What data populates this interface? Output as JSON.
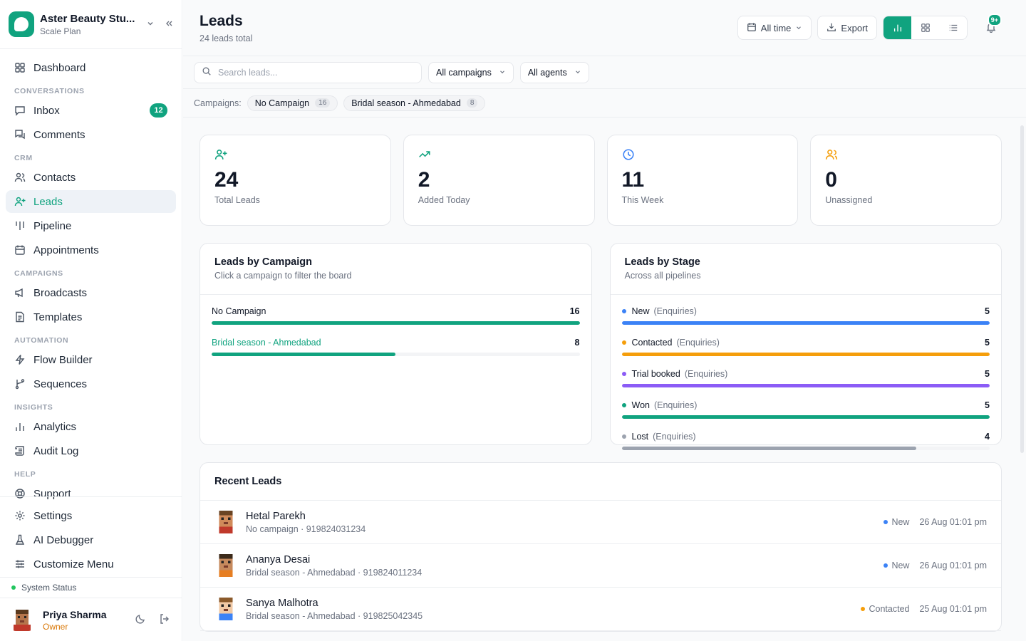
{
  "brand": {
    "name": "Aster Beauty Stu...",
    "plan": "Scale Plan"
  },
  "nav": {
    "dashboard": "Dashboard",
    "sec_conversations": "CONVERSATIONS",
    "inbox": "Inbox",
    "inbox_badge": "12",
    "comments": "Comments",
    "sec_crm": "CRM",
    "contacts": "Contacts",
    "leads": "Leads",
    "pipeline": "Pipeline",
    "appointments": "Appointments",
    "sec_campaigns": "CAMPAIGNS",
    "broadcasts": "Broadcasts",
    "templates": "Templates",
    "sec_automation": "AUTOMATION",
    "flow_builder": "Flow Builder",
    "sequences": "Sequences",
    "sec_insights": "INSIGHTS",
    "analytics": "Analytics",
    "audit_log": "Audit Log",
    "sec_help": "HELP",
    "support": "Support",
    "settings": "Settings",
    "ai_debugger": "AI Debugger",
    "customize_menu": "Customize Menu"
  },
  "system_status": "System Status",
  "user": {
    "name": "Priya Sharma",
    "role": "Owner"
  },
  "header": {
    "title": "Leads",
    "subtitle": "24 leads total",
    "time_filter": "All time",
    "export": "Export",
    "notif_badge": "9+"
  },
  "filters": {
    "search_placeholder": "Search leads...",
    "campaign_select": "All campaigns",
    "agent_select": "All agents"
  },
  "campaigns_bar": {
    "label": "Campaigns:",
    "chips": [
      {
        "name": "No Campaign",
        "count": "16"
      },
      {
        "name": "Bridal season - Ahmedabad",
        "count": "8"
      }
    ]
  },
  "stats": [
    {
      "value": "24",
      "label": "Total Leads",
      "color": "#10a37f"
    },
    {
      "value": "2",
      "label": "Added Today",
      "color": "#10a37f"
    },
    {
      "value": "11",
      "label": "This Week",
      "color": "#3b82f6"
    },
    {
      "value": "0",
      "label": "Unassigned",
      "color": "#f59e0b"
    }
  ],
  "by_campaign": {
    "title": "Leads by Campaign",
    "subtitle": "Click a campaign to filter the board",
    "rows": [
      {
        "name": "No Campaign",
        "count": "16",
        "fraction": 1.0
      },
      {
        "name": "Bridal season - Ahmedabad",
        "count": "8",
        "fraction": 0.5
      }
    ]
  },
  "by_stage": {
    "title": "Leads by Stage",
    "subtitle": "Across all pipelines",
    "rows": [
      {
        "name": "New",
        "pipeline": "(Enquiries)",
        "count": "5",
        "color": "#3b82f6",
        "fraction": 1.0
      },
      {
        "name": "Contacted",
        "pipeline": "(Enquiries)",
        "count": "5",
        "color": "#f59e0b",
        "fraction": 1.0
      },
      {
        "name": "Trial booked",
        "pipeline": "(Enquiries)",
        "count": "5",
        "color": "#8b5cf6",
        "fraction": 1.0
      },
      {
        "name": "Won",
        "pipeline": "(Enquiries)",
        "count": "5",
        "color": "#10a37f",
        "fraction": 1.0
      },
      {
        "name": "Lost",
        "pipeline": "(Enquiries)",
        "count": "4",
        "color": "#9ca3af",
        "fraction": 0.8
      }
    ]
  },
  "recent": {
    "title": "Recent Leads",
    "rows": [
      {
        "name": "Hetal Parekh",
        "meta": "No campaign · 919824031234",
        "stage": "New",
        "stage_color": "#3b82f6",
        "time": "26 Aug 01:01 pm"
      },
      {
        "name": "Ananya Desai",
        "meta": "Bridal season - Ahmedabad · 919824011234",
        "stage": "New",
        "stage_color": "#3b82f6",
        "time": "26 Aug 01:01 pm"
      },
      {
        "name": "Sanya Malhotra",
        "meta": "Bridal season - Ahmedabad · 919825042345",
        "stage": "Contacted",
        "stage_color": "#f59e0b",
        "time": "25 Aug 01:01 pm"
      }
    ]
  },
  "colors": {
    "accent": "#10a37f"
  }
}
